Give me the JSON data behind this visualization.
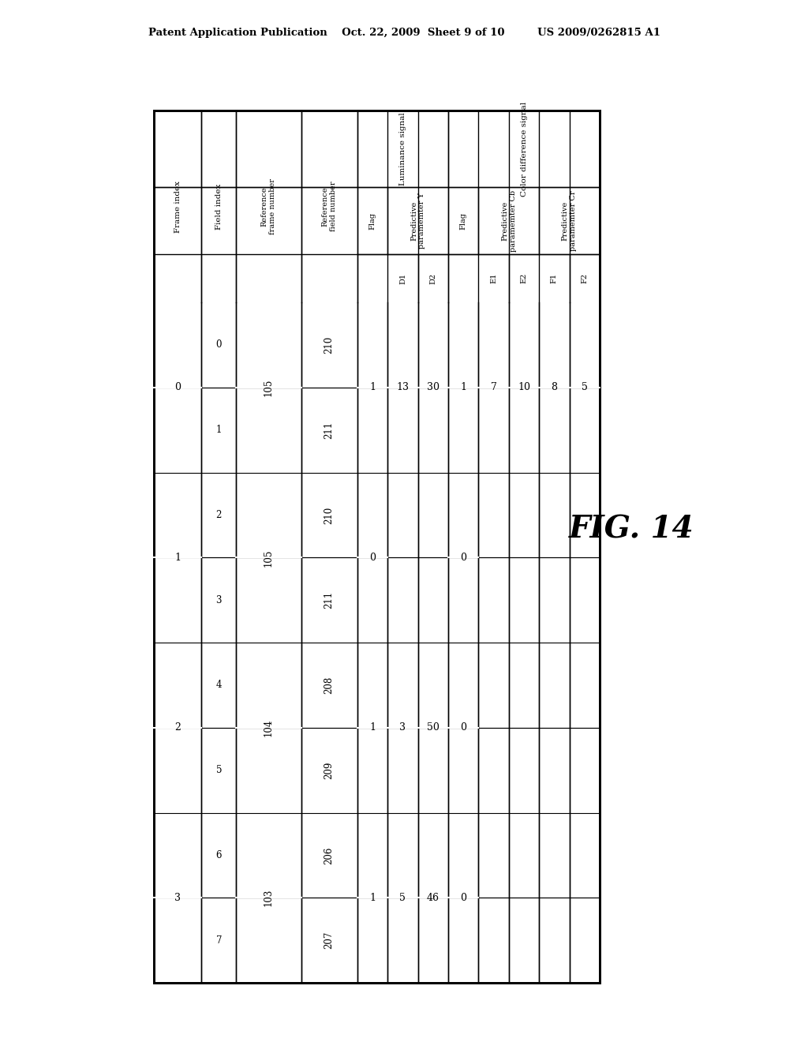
{
  "header_top": "Patent Application Publication    Oct. 22, 2009  Sheet 9 of 10         US 2009/0262815 A1",
  "fig_label": "FIG. 14",
  "background_color": "#ffffff",
  "text_color": "#000000",
  "table": {
    "frame_indices": [
      "0",
      "1",
      "2",
      "3"
    ],
    "field_indices": [
      "0",
      "1",
      "2",
      "3",
      "4",
      "5",
      "6",
      "7"
    ],
    "ref_frame_numbers": [
      "105",
      "",
      "105",
      "",
      "104",
      "",
      "103",
      ""
    ],
    "ref_field_numbers": [
      "210",
      "211",
      "210",
      "211",
      "208",
      "209",
      "206",
      "207"
    ],
    "lum_flag": [
      "1",
      "0",
      "1",
      "1"
    ],
    "lum_D1": [
      "13",
      "",
      "3",
      "5"
    ],
    "lum_D2": [
      "30",
      "",
      "50",
      "46"
    ],
    "color_flag": [
      "1",
      "0",
      "0",
      "0"
    ],
    "color_E1": [
      "7",
      "",
      "",
      ""
    ],
    "color_E2": [
      "10",
      "",
      "",
      ""
    ],
    "color_F1": [
      "8",
      "",
      "",
      ""
    ],
    "color_F2": [
      "5",
      "",
      "",
      ""
    ]
  }
}
